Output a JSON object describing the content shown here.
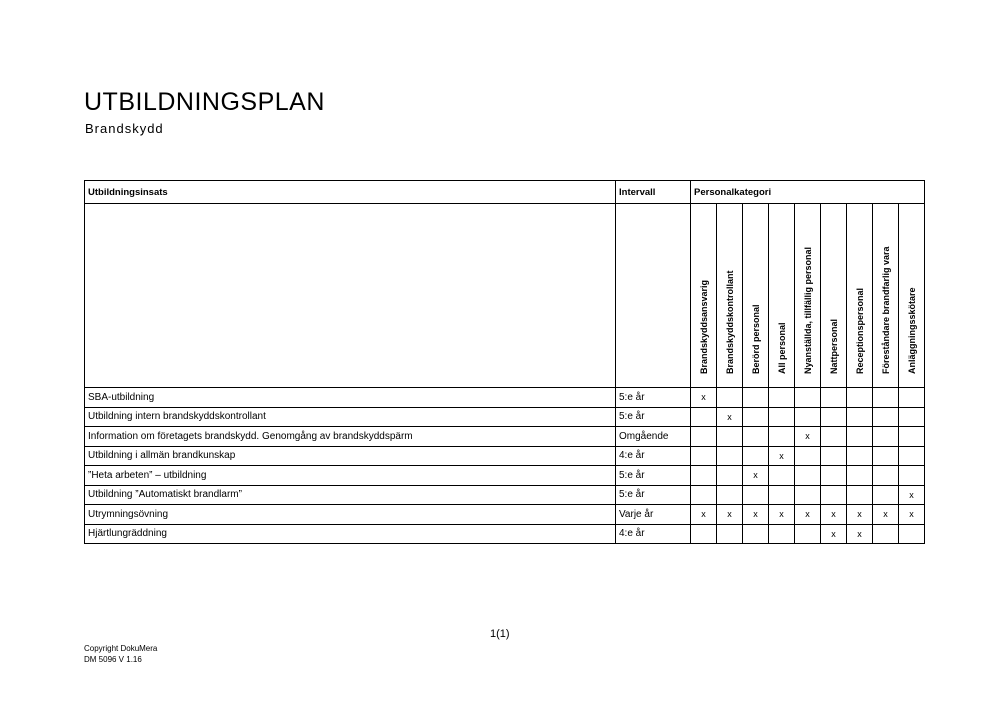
{
  "title": "UTBILDNINGSPLAN",
  "subtitle": "Brandskydd",
  "table": {
    "headers": [
      "Utbildningsinsats",
      "Intervall",
      "Personalkategori"
    ],
    "categories": [
      "Brandskyddsansvarig",
      "Brandskyddskontrollant",
      "Berörd personal",
      "All personal",
      "Nyanställda, tillfällig personal",
      "Nattpersonal",
      "Receptionspersonal",
      "Föreståndare brandfarlig vara",
      "Anläggningsskötare"
    ],
    "rows": [
      {
        "insats": "SBA-utbildning",
        "intervall": "5:e år",
        "marks": [
          "x",
          "",
          "",
          "",
          "",
          "",
          "",
          "",
          ""
        ]
      },
      {
        "insats": "Utbildning intern brandskyddskontrollant",
        "intervall": "5:e år",
        "marks": [
          "",
          "x",
          "",
          "",
          "",
          "",
          "",
          "",
          ""
        ]
      },
      {
        "insats": "Information om företagets brandskydd. Genomgång av brandskyddspärm",
        "intervall": "Omgående",
        "marks": [
          "",
          "",
          "",
          "",
          "x",
          "",
          "",
          "",
          ""
        ]
      },
      {
        "insats": "Utbildning i allmän brandkunskap",
        "intervall": "4:e år",
        "marks": [
          "",
          "",
          "",
          "x",
          "",
          "",
          "",
          "",
          ""
        ]
      },
      {
        "insats": "”Heta arbeten” – utbildning",
        "intervall": "5:e år",
        "marks": [
          "",
          "",
          "x",
          "",
          "",
          "",
          "",
          "",
          ""
        ]
      },
      {
        "insats": "Utbildning ”Automatiskt brandlarm”",
        "intervall": "5:e år",
        "marks": [
          "",
          "",
          "",
          "",
          "",
          "",
          "",
          "",
          "x"
        ]
      },
      {
        "insats": "Utrymningsövning",
        "intervall": "Varje år",
        "marks": [
          "x",
          "x",
          "x",
          "x",
          "x",
          "x",
          "x",
          "x",
          "x"
        ]
      },
      {
        "insats": "Hjärtlungräddning",
        "intervall": "4:e år",
        "marks": [
          "",
          "",
          "",
          "",
          "",
          "x",
          "x",
          "",
          ""
        ]
      }
    ]
  },
  "page_number": "1(1)",
  "footer": {
    "copyright": "Copyright DokuMera",
    "doc_id": "DM 5096 V 1.16"
  }
}
